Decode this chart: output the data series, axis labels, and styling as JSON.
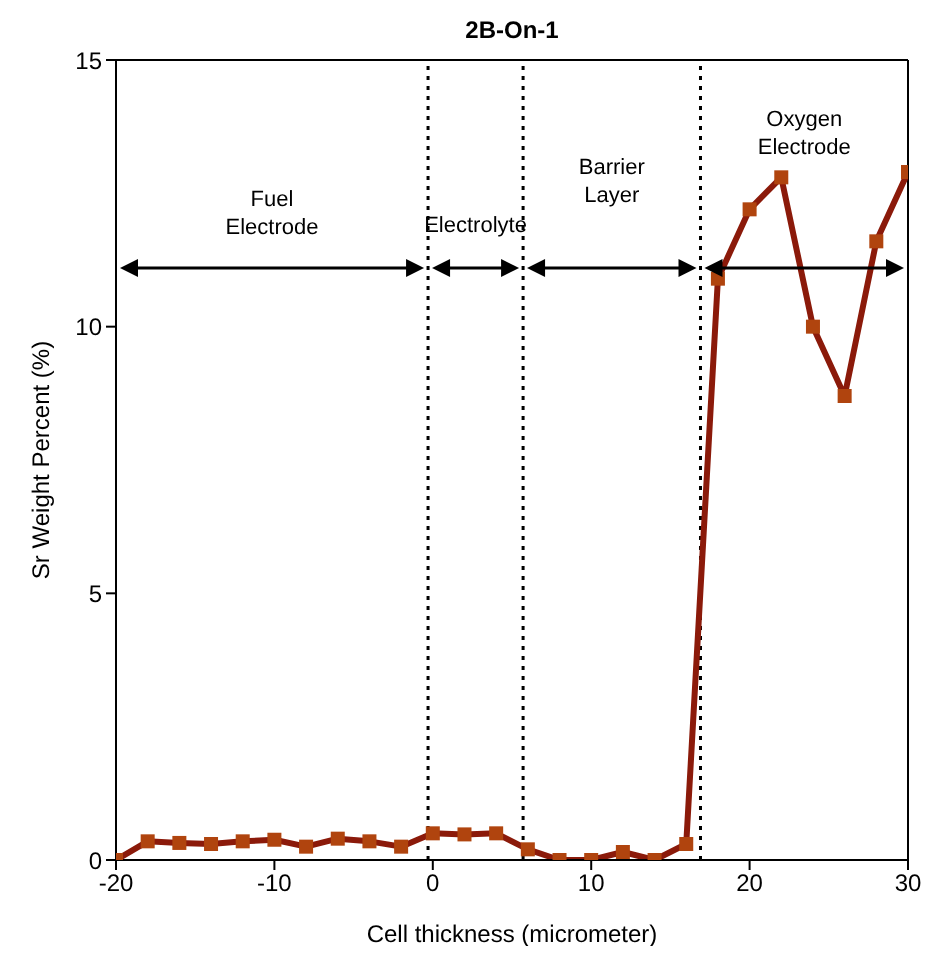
{
  "chart_data": {
    "type": "line",
    "title": "2B-On-1",
    "xlabel": "Cell thickness (micrometer)",
    "ylabel": "Sr Weight Percent (%)",
    "x": [
      -20,
      -18,
      -16,
      -14,
      -12,
      -10,
      -8,
      -6,
      -4,
      -2,
      0,
      2,
      4,
      6,
      8,
      10,
      12,
      14,
      16,
      18,
      20,
      22,
      24,
      26,
      28,
      30
    ],
    "series": [
      {
        "color": "#8b1a0a",
        "values": [
          0,
          0.35,
          0.32,
          0.3,
          0.35,
          0.38,
          0.25,
          0.4,
          0.35,
          0.25,
          0.5,
          0.48,
          0.5,
          0.2,
          0,
          0,
          0.15,
          0,
          0.3,
          10.9,
          12.2,
          12.8,
          10.0,
          8.7,
          11.6,
          12.9
        ]
      }
    ],
    "xlim": [
      -20,
      30
    ],
    "xticks": [
      -20,
      -10,
      0,
      10,
      20,
      30
    ],
    "ylim": [
      0,
      15
    ],
    "yticks": [
      0,
      5,
      10,
      15
    ],
    "marker": "square",
    "line_style": "solid",
    "ref_lines": [
      {
        "axis": "x",
        "value": -0.3,
        "line_style": "dotted",
        "color": "#000000"
      },
      {
        "axis": "x",
        "value": 5.7,
        "line_style": "dotted",
        "color": "#000000"
      },
      {
        "axis": "x",
        "value": 16.9,
        "line_style": "dotted",
        "color": "#000000"
      }
    ],
    "annotations": [
      "Fuel Electrode",
      "Electrolyte",
      "Barrier Layer",
      "Oxygen Electrode"
    ]
  }
}
